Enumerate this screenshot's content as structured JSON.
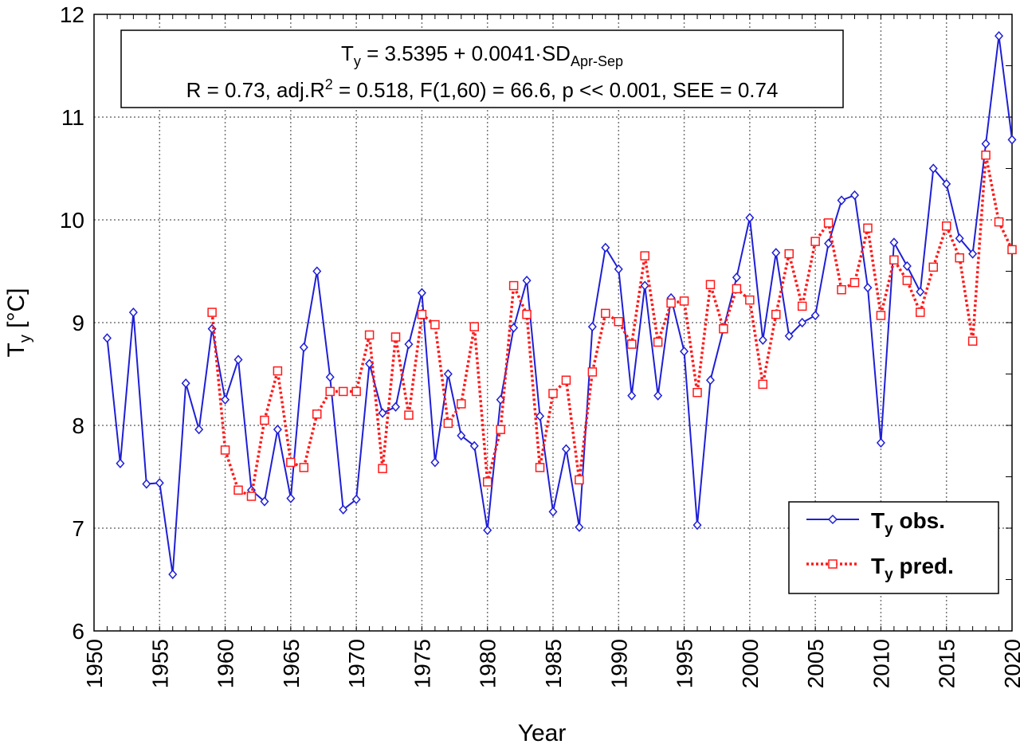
{
  "chart_data": {
    "type": "line",
    "xlabel": "Year",
    "ylabel": {
      "main": "T",
      "sub": "y",
      "unit": " [°C]"
    },
    "xlim": [
      1950,
      2020
    ],
    "ylim": [
      6,
      12
    ],
    "x_ticks": [
      1950,
      1955,
      1960,
      1965,
      1970,
      1975,
      1980,
      1985,
      1990,
      1995,
      2000,
      2005,
      2010,
      2015,
      2020
    ],
    "y_ticks": [
      6,
      7,
      8,
      9,
      10,
      11,
      12
    ],
    "grid": true,
    "legend_position": "bottom-right",
    "annotation": {
      "line1": {
        "t": "T",
        "sub": "y",
        "eq": " = 3.5395 + 0.0041·SD",
        "sub2": "Apr-Sep"
      },
      "line2": {
        "pre": "R = 0.73, adj.R",
        "sup": "2",
        "post": " = 0.518, F(1,60) = 66.6, p << 0.001, SEE = 0.74"
      }
    },
    "series": [
      {
        "name": {
          "main": "T",
          "sub": "y",
          "suffix": " obs."
        },
        "color": "#1f1fd6",
        "style": "solid",
        "marker": "diamond",
        "x": [
          1951,
          1952,
          1953,
          1954,
          1955,
          1956,
          1957,
          1958,
          1959,
          1960,
          1961,
          1962,
          1963,
          1964,
          1965,
          1966,
          1967,
          1968,
          1969,
          1970,
          1971,
          1972,
          1973,
          1974,
          1975,
          1976,
          1977,
          1978,
          1979,
          1980,
          1981,
          1982,
          1983,
          1984,
          1985,
          1986,
          1987,
          1988,
          1989,
          1990,
          1991,
          1992,
          1993,
          1994,
          1995,
          1996,
          1997,
          1998,
          1999,
          2000,
          2001,
          2002,
          2003,
          2004,
          2005,
          2006,
          2007,
          2008,
          2009,
          2010,
          2011,
          2012,
          2013,
          2014,
          2015,
          2016,
          2017,
          2018,
          2019,
          2020
        ],
        "values": [
          8.85,
          7.63,
          9.1,
          7.43,
          7.44,
          6.55,
          8.41,
          7.96,
          8.94,
          8.25,
          8.64,
          7.37,
          7.26,
          7.96,
          7.29,
          8.76,
          9.5,
          8.47,
          7.18,
          7.28,
          8.6,
          8.12,
          8.18,
          8.79,
          9.29,
          7.64,
          8.5,
          7.9,
          7.8,
          6.98,
          8.25,
          8.95,
          9.41,
          8.09,
          7.16,
          7.77,
          7.01,
          8.96,
          9.73,
          9.52,
          8.29,
          9.36,
          8.29,
          9.24,
          8.72,
          7.03,
          8.44,
          8.94,
          9.44,
          10.02,
          8.83,
          9.68,
          8.87,
          9.0,
          9.07,
          9.77,
          10.19,
          10.24,
          9.34,
          7.83,
          9.78,
          9.55,
          9.3,
          10.5,
          10.35,
          9.82,
          9.67,
          10.74,
          11.79,
          10.78
        ]
      },
      {
        "name": {
          "main": "T",
          "sub": "y",
          "suffix": " pred."
        },
        "color": "#ff1a1a",
        "style": "dotted",
        "marker": "square",
        "x": [
          1959,
          1960,
          1961,
          1962,
          1963,
          1964,
          1965,
          1966,
          1967,
          1968,
          1969,
          1970,
          1971,
          1972,
          1973,
          1974,
          1975,
          1976,
          1977,
          1978,
          1979,
          1980,
          1981,
          1982,
          1983,
          1984,
          1985,
          1986,
          1987,
          1988,
          1989,
          1990,
          1991,
          1992,
          1993,
          1994,
          1995,
          1996,
          1997,
          1998,
          1999,
          2000,
          2001,
          2002,
          2003,
          2004,
          2005,
          2006,
          2007,
          2008,
          2009,
          2010,
          2011,
          2012,
          2013,
          2014,
          2015,
          2016,
          2017,
          2018,
          2019,
          2020
        ],
        "values": [
          9.1,
          7.76,
          7.37,
          7.31,
          8.05,
          8.53,
          7.64,
          7.59,
          8.11,
          8.33,
          8.33,
          8.33,
          8.88,
          7.58,
          8.86,
          8.1,
          9.08,
          8.98,
          8.02,
          8.21,
          8.96,
          7.45,
          7.96,
          9.36,
          9.08,
          7.59,
          8.31,
          8.44,
          7.47,
          8.52,
          9.09,
          9.01,
          8.79,
          9.65,
          8.81,
          9.19,
          9.21,
          8.32,
          9.37,
          8.94,
          9.33,
          9.22,
          8.4,
          9.08,
          9.67,
          9.16,
          9.79,
          9.97,
          9.32,
          9.39,
          9.92,
          9.07,
          9.61,
          9.41,
          9.1,
          9.54,
          9.94,
          9.63,
          8.82,
          10.63,
          9.98,
          9.71
        ]
      }
    ]
  }
}
